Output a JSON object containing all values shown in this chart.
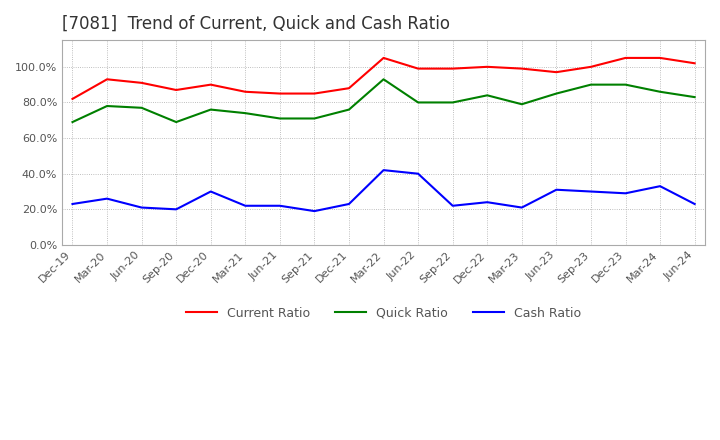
{
  "title": "[7081]  Trend of Current, Quick and Cash Ratio",
  "x_labels": [
    "Dec-19",
    "Mar-20",
    "Jun-20",
    "Sep-20",
    "Dec-20",
    "Mar-21",
    "Jun-21",
    "Sep-21",
    "Dec-21",
    "Mar-22",
    "Jun-22",
    "Sep-22",
    "Dec-22",
    "Mar-23",
    "Jun-23",
    "Sep-23",
    "Dec-23",
    "Mar-24",
    "Jun-24"
  ],
  "current_ratio": [
    0.82,
    0.93,
    0.91,
    0.87,
    0.9,
    0.86,
    0.85,
    0.85,
    0.88,
    1.05,
    0.99,
    0.99,
    1.0,
    0.99,
    0.97,
    1.0,
    1.05,
    1.05,
    1.02
  ],
  "quick_ratio": [
    0.69,
    0.78,
    0.77,
    0.69,
    0.76,
    0.74,
    0.71,
    0.71,
    0.76,
    0.93,
    0.8,
    0.8,
    0.84,
    0.79,
    0.85,
    0.9,
    0.9,
    0.86,
    0.83
  ],
  "cash_ratio": [
    0.23,
    0.26,
    0.21,
    0.2,
    0.3,
    0.22,
    0.22,
    0.19,
    0.23,
    0.42,
    0.4,
    0.22,
    0.24,
    0.21,
    0.31,
    0.3,
    0.29,
    0.33,
    0.23
  ],
  "current_color": "#FF0000",
  "quick_color": "#008000",
  "cash_color": "#0000FF",
  "ylim_min": 0.0,
  "ylim_max": 1.15,
  "yticks": [
    0.0,
    0.2,
    0.4,
    0.6,
    0.8,
    1.0
  ],
  "background_color": "#ffffff",
  "grid_color": "#aaaaaa",
  "title_fontsize": 12,
  "tick_fontsize": 8,
  "legend_fontsize": 9
}
